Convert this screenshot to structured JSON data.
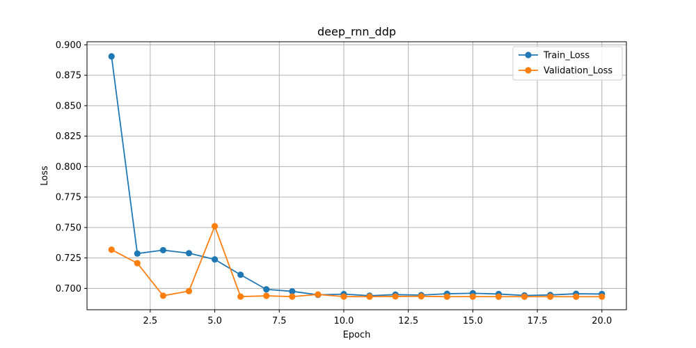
{
  "chart_data": {
    "type": "line",
    "title": "deep_rnn_ddp",
    "xlabel": "Epoch",
    "ylabel": "Loss",
    "xlim": [
      0.05,
      20.95
    ],
    "ylim": [
      0.6825,
      0.9025
    ],
    "xticks": [
      2.5,
      5.0,
      7.5,
      10.0,
      12.5,
      15.0,
      17.5,
      20.0
    ],
    "xtick_labels": [
      "2.5",
      "5.0",
      "7.5",
      "10.0",
      "12.5",
      "15.0",
      "17.5",
      "20.0"
    ],
    "yticks": [
      0.7,
      0.725,
      0.75,
      0.775,
      0.8,
      0.825,
      0.85,
      0.875,
      0.9
    ],
    "ytick_labels": [
      "0.700",
      "0.725",
      "0.750",
      "0.775",
      "0.800",
      "0.825",
      "0.850",
      "0.875",
      "0.900"
    ],
    "grid": true,
    "legend_position": "top-right",
    "x": [
      1,
      2,
      3,
      4,
      5,
      6,
      7,
      8,
      9,
      10,
      11,
      12,
      13,
      14,
      15,
      16,
      17,
      18,
      19,
      20
    ],
    "series": [
      {
        "name": "Train_Loss",
        "color": "#1f77b4",
        "marker": "circle",
        "values": [
          0.8905,
          0.7286,
          0.7314,
          0.7289,
          0.7238,
          0.7112,
          0.6992,
          0.6976,
          0.6947,
          0.6953,
          0.694,
          0.6949,
          0.6945,
          0.6956,
          0.696,
          0.6954,
          0.6942,
          0.6946,
          0.6956,
          0.6954
        ]
      },
      {
        "name": "Validation_Loss",
        "color": "#ff7f0e",
        "marker": "circle",
        "values": [
          0.7318,
          0.7207,
          0.694,
          0.6978,
          0.7511,
          0.6933,
          0.6939,
          0.6933,
          0.695,
          0.6933,
          0.6932,
          0.6934,
          0.6935,
          0.6932,
          0.6933,
          0.6932,
          0.6932,
          0.6932,
          0.6932,
          0.6932
        ]
      }
    ]
  }
}
